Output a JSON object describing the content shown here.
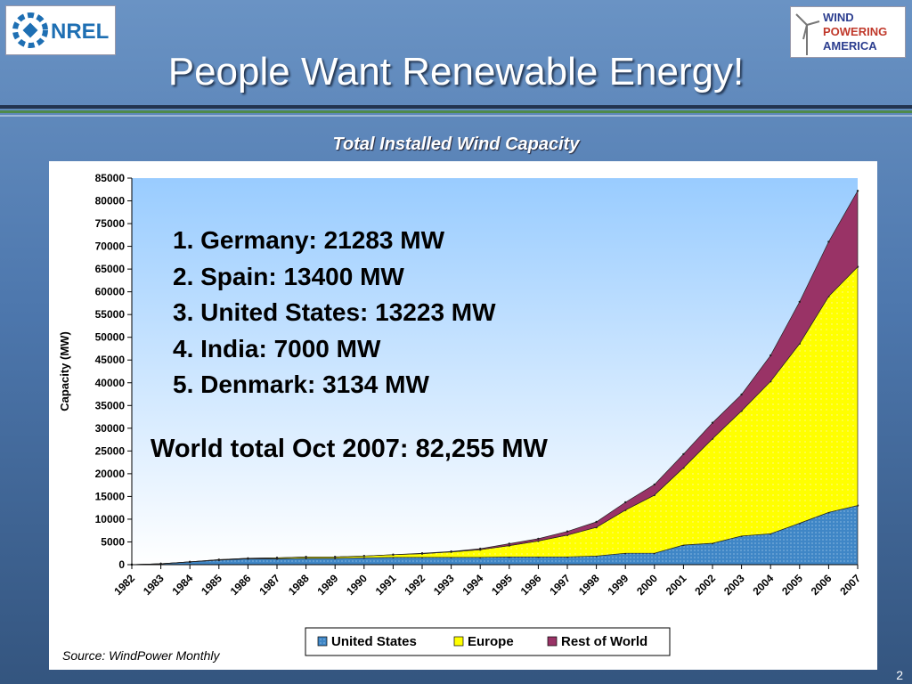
{
  "slide": {
    "title": "People Want Renewable Energy!",
    "chart_heading": "Total Installed Wind Capacity",
    "source": "Source: WindPower Monthly",
    "page_number": "2",
    "logos": {
      "nrel_text": "NREL",
      "wpa_lines": [
        "WIND",
        "POWERING",
        "AMERICA"
      ]
    },
    "rankings": [
      "1. Germany:  21283 MW",
      "2. Spain: 13400 MW",
      "3. United States:  13223 MW",
      "4. India: 7000 MW",
      "5. Denmark:  3134 MW"
    ],
    "world_total": "World total Oct 2007: 82,255 MW"
  },
  "colors": {
    "united_states": "#3f86c6",
    "europe": "#ffff00",
    "rest_of_world": "#993366",
    "plot_top": "#99ccff",
    "plot_bottom": "#ffffff"
  },
  "chart_data": {
    "type": "area",
    "stacked": true,
    "title": "Total Installed Wind Capacity",
    "xlabel": "",
    "ylabel": "Capacity (MW)",
    "ylim": [
      0,
      85000
    ],
    "yticks": [
      0,
      5000,
      10000,
      15000,
      20000,
      25000,
      30000,
      35000,
      40000,
      45000,
      50000,
      55000,
      60000,
      65000,
      70000,
      75000,
      80000,
      85000
    ],
    "categories": [
      "1982",
      "1983",
      "1984",
      "1985",
      "1986",
      "1987",
      "1988",
      "1989",
      "1990",
      "1991",
      "1992",
      "1993",
      "1994",
      "1995",
      "1996",
      "1997",
      "1998",
      "1999",
      "2000",
      "2001",
      "2002",
      "2003",
      "2004",
      "2005",
      "2006",
      "2007"
    ],
    "legend_position": "bottom",
    "series": [
      {
        "name": "United States",
        "values": [
          0,
          200,
          600,
          1000,
          1300,
          1300,
          1400,
          1400,
          1500,
          1600,
          1600,
          1600,
          1600,
          1700,
          1700,
          1700,
          1900,
          2500,
          2500,
          4300,
          4700,
          6300,
          6800,
          9100,
          11500,
          13000
        ]
      },
      {
        "name": "Europe",
        "values": [
          0,
          0,
          0,
          100,
          100,
          200,
          300,
          300,
          400,
          600,
          800,
          1200,
          1700,
          2500,
          3500,
          4800,
          6300,
          9500,
          12800,
          17000,
          23000,
          27500,
          33500,
          39500,
          47500,
          52500
        ]
      },
      {
        "name": "Rest of World",
        "values": [
          0,
          0,
          0,
          0,
          0,
          0,
          0,
          0,
          0,
          0,
          100,
          100,
          200,
          400,
          500,
          800,
          1200,
          1700,
          2300,
          3000,
          3500,
          3600,
          5700,
          9200,
          12000,
          16700
        ]
      }
    ]
  }
}
